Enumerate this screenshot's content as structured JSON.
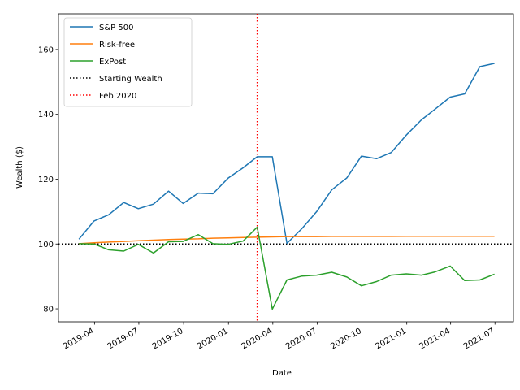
{
  "chart_data": {
    "type": "line",
    "xlabel": "Date",
    "ylabel": "Wealth ($)",
    "x_ticks": [
      "2019-04",
      "2019-07",
      "2019-10",
      "2020-01",
      "2020-04",
      "2020-07",
      "2020-10",
      "2021-01",
      "2021-04",
      "2021-07"
    ],
    "y_ticks": [
      80,
      100,
      120,
      140,
      160
    ],
    "xlim": [
      "2019-01-17",
      "2021-08-08"
    ],
    "ylim": [
      76,
      171
    ],
    "x": [
      "2019-02-28",
      "2019-03-31",
      "2019-04-30",
      "2019-05-31",
      "2019-06-30",
      "2019-07-31",
      "2019-08-31",
      "2019-09-30",
      "2019-10-31",
      "2019-11-30",
      "2019-12-31",
      "2020-01-31",
      "2020-02-29",
      "2020-03-31",
      "2020-04-30",
      "2020-05-31",
      "2020-06-30",
      "2020-07-31",
      "2020-08-31",
      "2020-09-30",
      "2020-10-31",
      "2020-11-30",
      "2020-12-31",
      "2021-01-31",
      "2021-02-28",
      "2021-03-31",
      "2021-04-30",
      "2021-05-31",
      "2021-06-30"
    ],
    "series": [
      {
        "name": "S&P 500",
        "color": "#1f77b4",
        "values": [
          101.5,
          107.1,
          109.0,
          112.8,
          110.9,
          112.3,
          116.3,
          112.5,
          115.7,
          115.5,
          120.3,
          123.5,
          126.9,
          126.9,
          100.2,
          104.8,
          110.0,
          116.7,
          120.4,
          127.1,
          126.3,
          128.2,
          133.6,
          138.3,
          141.6,
          145.3,
          146.3,
          154.7,
          155.7
        ]
      },
      {
        "name": "Risk-free",
        "color": "#ff7f0e",
        "values": [
          100.1,
          100.4,
          100.6,
          100.8,
          101.0,
          101.2,
          101.4,
          101.5,
          101.6,
          101.8,
          101.9,
          102.0,
          102.1,
          102.2,
          102.3,
          102.3,
          102.3,
          102.35,
          102.35,
          102.35,
          102.35,
          102.35,
          102.36,
          102.36,
          102.37,
          102.37,
          102.37,
          102.38,
          102.38
        ]
      },
      {
        "name": "ExPost",
        "color": "#2ca02c",
        "values": [
          100.1,
          100.0,
          98.2,
          97.8,
          99.9,
          97.2,
          100.7,
          100.8,
          102.9,
          100.1,
          99.9,
          100.9,
          105.2,
          79.9,
          88.9,
          90.1,
          90.4,
          91.3,
          89.8,
          87.1,
          88.4,
          90.4,
          90.8,
          90.4,
          91.4,
          93.2,
          88.7,
          88.9,
          90.7
        ]
      }
    ],
    "reference_lines": [
      {
        "name": "Starting Wealth",
        "orientation": "horizontal",
        "y": 100,
        "color": "#000000",
        "style": "dotted"
      },
      {
        "name": "Feb 2020",
        "orientation": "vertical",
        "x": "2020-02-29",
        "color": "#ff0000",
        "style": "dotted"
      }
    ],
    "legend_position": "top-left",
    "grid": false
  }
}
